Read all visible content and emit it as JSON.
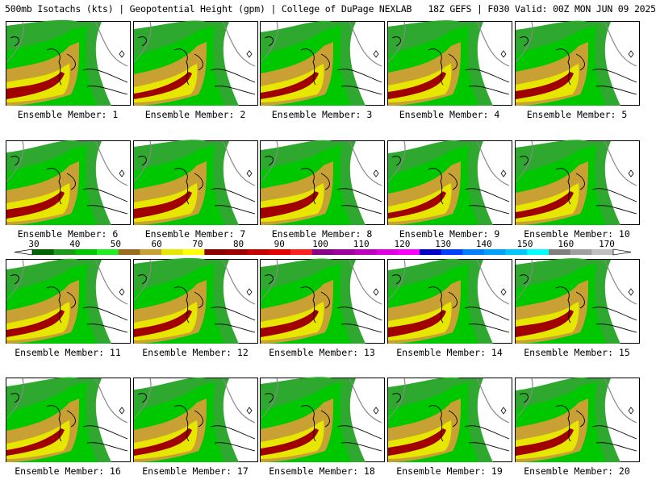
{
  "header": {
    "product": "500mb Isotachs (kts) | Geopotential Height (gpm) | College of DuPage NEXLAB",
    "run": "18Z GEFS | F030 Valid: 00Z MON JUN 09 2025"
  },
  "colorbar": {
    "labels": [
      "30",
      "40",
      "50",
      "60",
      "70",
      "80",
      "90",
      "100",
      "110",
      "120",
      "130",
      "140",
      "150",
      "160",
      "170"
    ],
    "colors": [
      "#006400",
      "#1e9a1e",
      "#00c800",
      "#22ee22",
      "#9b6b1f",
      "#c8a034",
      "#e6e600",
      "#ffff00",
      "#8b0000",
      "#a00000",
      "#c80000",
      "#e60000",
      "#ff2020",
      "#8b008b",
      "#a000a0",
      "#c000c0",
      "#e000e0",
      "#ff00ff",
      "#0000c8",
      "#0040ff",
      "#0080ff",
      "#00a0ff",
      "#00c8ff",
      "#00ffff",
      "#808080",
      "#a0a0a0",
      "#c0c0c0"
    ]
  },
  "members": [
    {
      "label": "Ensemble Member: 1"
    },
    {
      "label": "Ensemble Member: 2"
    },
    {
      "label": "Ensemble Member: 3"
    },
    {
      "label": "Ensemble Member: 4"
    },
    {
      "label": "Ensemble Member: 5"
    },
    {
      "label": "Ensemble Member: 6"
    },
    {
      "label": "Ensemble Member: 7"
    },
    {
      "label": "Ensemble Member: 8"
    },
    {
      "label": "Ensemble Member: 9"
    },
    {
      "label": "Ensemble Member: 10"
    },
    {
      "label": "Ensemble Member: 11"
    },
    {
      "label": "Ensemble Member: 12"
    },
    {
      "label": "Ensemble Member: 13"
    },
    {
      "label": "Ensemble Member: 14"
    },
    {
      "label": "Ensemble Member: 15"
    },
    {
      "label": "Ensemble Member: 16"
    },
    {
      "label": "Ensemble Member: 17"
    },
    {
      "label": "Ensemble Member: 18"
    },
    {
      "label": "Ensemble Member: 19"
    },
    {
      "label": "Ensemble Member: 20"
    }
  ]
}
